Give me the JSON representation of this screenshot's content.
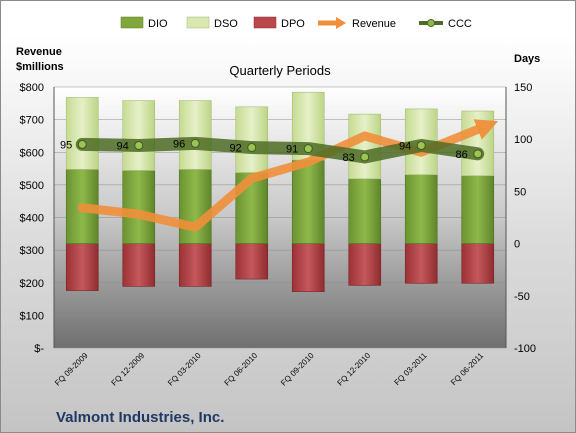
{
  "chart_data": {
    "type": "bar",
    "title": "Quarterly Periods",
    "company": "Valmont Industries, Inc.",
    "left_axis_title_line1": "Revenue",
    "left_axis_title_line2": "$millions",
    "right_axis_title": "Days",
    "left_ylim": [
      0,
      800
    ],
    "right_ylim": [
      -100,
      150
    ],
    "left_ticks": [
      "$-",
      "$100",
      "$200",
      "$300",
      "$400",
      "$500",
      "$600",
      "$700",
      "$800"
    ],
    "right_ticks": [
      "-100",
      "-50",
      "0",
      "50",
      "100",
      "150"
    ],
    "categories": [
      "FQ 09-2009",
      "FQ 12-2009",
      "FQ 03-2010",
      "FQ 06-2010",
      "FQ 09-2010",
      "FQ 12-2010",
      "FQ 03-2011",
      "FQ 06-2011"
    ],
    "legend": [
      "DIO",
      "DSO",
      "DPO",
      "Revenue",
      "CCC"
    ],
    "series": [
      {
        "name": "DIO",
        "axis": "right",
        "values": [
          71,
          70,
          71,
          68,
          80,
          62,
          66,
          65
        ],
        "color": "#7fa73c"
      },
      {
        "name": "DSO",
        "axis": "right",
        "values": [
          69,
          67,
          66,
          63,
          65,
          62,
          63,
          62
        ],
        "color": "#d9e8b0"
      },
      {
        "name": "DPO",
        "axis": "right",
        "values": [
          -45,
          -41,
          -41,
          -34,
          -46,
          -40,
          -38,
          -38
        ],
        "color": "#b9474c"
      },
      {
        "name": "Revenue",
        "axis": "left",
        "values": [
          430,
          410,
          370,
          520,
          570,
          650,
          600,
          670
        ],
        "color": "#ef8f3a"
      },
      {
        "name": "CCC",
        "axis": "right",
        "values": [
          95,
          94,
          96,
          92,
          91,
          83,
          94,
          86
        ],
        "color": "#5a7a2a"
      }
    ],
    "ccc_labels": [
      "95",
      "94",
      "96",
      "92",
      "91",
      "83",
      "94",
      "86"
    ]
  }
}
